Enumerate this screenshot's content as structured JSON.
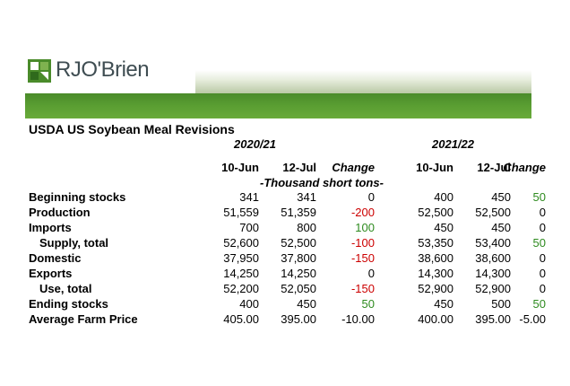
{
  "logo": {
    "text": "RJO'Brien"
  },
  "title": "USDA US Soybean Meal Revisions",
  "years": [
    "2020/21",
    "2021/22"
  ],
  "headers": [
    "10-Jun",
    "12-Jul",
    "Change",
    "10-Jun",
    "12-Jul",
    "Change"
  ],
  "units": "-Thousand short tons-",
  "colors": {
    "negative": "#cc0000",
    "positive": "#2e8b1f",
    "band": "#5a9e32"
  },
  "rows": [
    {
      "label": "Beginning stocks",
      "indent": false,
      "values": [
        "341",
        "341",
        "0",
        "400",
        "450",
        "50"
      ]
    },
    {
      "label": "Production",
      "indent": false,
      "values": [
        "51,559",
        "51,359",
        "-200",
        "52,500",
        "52,500",
        "0"
      ]
    },
    {
      "label": "Imports",
      "indent": false,
      "values": [
        "700",
        "800",
        "100",
        "450",
        "450",
        "0"
      ]
    },
    {
      "label": "Supply, total",
      "indent": true,
      "values": [
        "52,600",
        "52,500",
        "-100",
        "53,350",
        "53,400",
        "50"
      ]
    },
    {
      "label": "Domestic",
      "indent": false,
      "values": [
        "37,950",
        "37,800",
        "-150",
        "38,600",
        "38,600",
        "0"
      ]
    },
    {
      "label": "Exports",
      "indent": false,
      "values": [
        "14,250",
        "14,250",
        "0",
        "14,300",
        "14,300",
        "0"
      ]
    },
    {
      "label": "Use, total",
      "indent": true,
      "values": [
        "52,200",
        "52,050",
        "-150",
        "52,900",
        "52,900",
        "0"
      ]
    },
    {
      "label": "Ending stocks",
      "indent": false,
      "values": [
        "400",
        "450",
        "50",
        "450",
        "500",
        "50"
      ]
    },
    {
      "label": "Average Farm Price",
      "indent": false,
      "values": [
        "405.00",
        "395.00",
        "-10.00",
        "400.00",
        "395.00",
        "-5.00"
      ]
    }
  ]
}
